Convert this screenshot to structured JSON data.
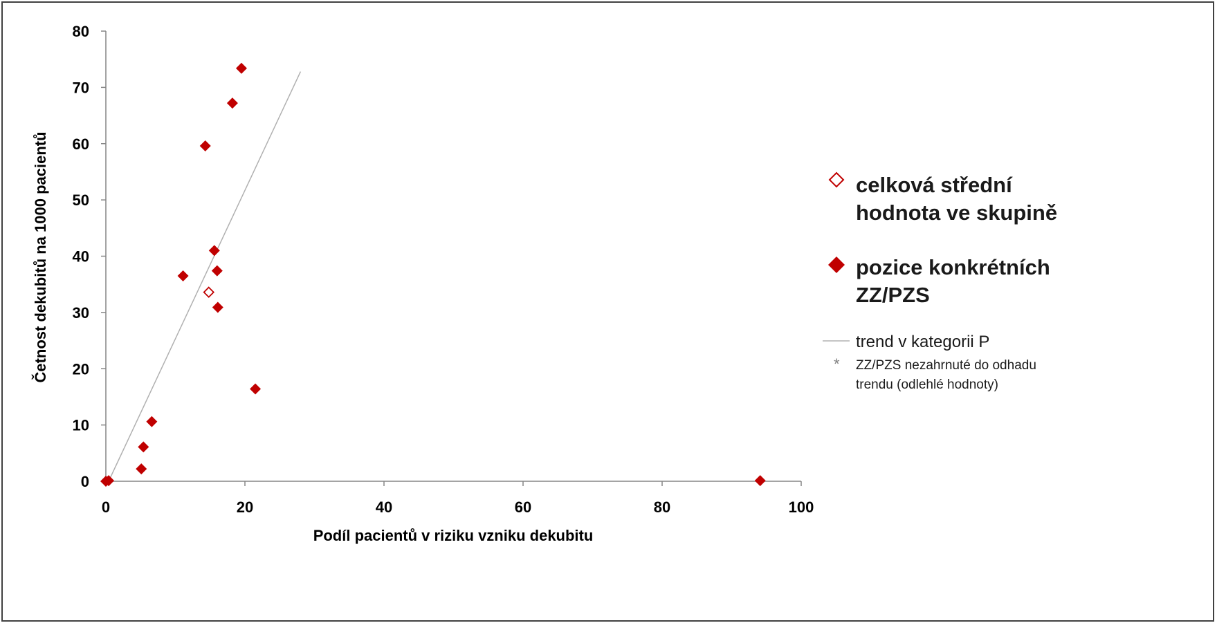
{
  "chart_data": {
    "type": "scatter",
    "xlabel": "Podíl pacientů v riziku vzniku dekubitu",
    "ylabel": "Četnost dekubitů na 1000 pacientů",
    "xlim": [
      0,
      100
    ],
    "ylim": [
      0,
      80
    ],
    "x_ticks": [
      "0",
      "20",
      "40",
      "60",
      "80",
      "100"
    ],
    "y_ticks": [
      "0",
      "10",
      "20",
      "30",
      "40",
      "50",
      "60",
      "70",
      "80"
    ],
    "x_tick_values": [
      0,
      20,
      40,
      60,
      80,
      100
    ],
    "y_tick_values": [
      0,
      10,
      20,
      30,
      40,
      50,
      60,
      70,
      80
    ],
    "grid": false,
    "legend_position": "right",
    "series": [
      {
        "name": "pozice konkrétních ZZ/PZS",
        "marker": "filled-diamond",
        "color": "#c00000",
        "points": [
          {
            "x": 0.0,
            "y": 0.0
          },
          {
            "x": 0.4,
            "y": 0.1
          },
          {
            "x": 5.1,
            "y": 2.2
          },
          {
            "x": 5.4,
            "y": 6.1
          },
          {
            "x": 6.6,
            "y": 10.6
          },
          {
            "x": 11.1,
            "y": 36.5
          },
          {
            "x": 14.3,
            "y": 59.6
          },
          {
            "x": 15.6,
            "y": 41.0
          },
          {
            "x": 16.0,
            "y": 37.4
          },
          {
            "x": 16.1,
            "y": 30.9
          },
          {
            "x": 18.2,
            "y": 67.2
          },
          {
            "x": 19.5,
            "y": 73.4
          },
          {
            "x": 21.5,
            "y": 16.4
          },
          {
            "x": 94.1,
            "y": 0.1
          }
        ]
      },
      {
        "name": "celková střední hodnota ve skupině",
        "marker": "hollow-diamond",
        "color": "#c00000",
        "points": [
          {
            "x": 14.8,
            "y": 33.6
          }
        ]
      },
      {
        "name": "trend v kategorii P",
        "type": "line",
        "color": "#b0b0b0",
        "points": [
          {
            "x": 0.4,
            "y": 0.0
          },
          {
            "x": 28.0,
            "y": 72.8
          }
        ]
      }
    ],
    "legend": {
      "mean_lines": [
        "celková střední",
        "hodnota ve skupině"
      ],
      "point_lines": [
        "pozice konkrétních",
        "ZZ/PZS"
      ],
      "trend_label": "trend v kategorii P",
      "outlier_symbol": "*",
      "outlier_lines": [
        "ZZ/PZS nezahrnuté do odhadu",
        "trendu (odlehlé hodnoty)"
      ]
    }
  }
}
